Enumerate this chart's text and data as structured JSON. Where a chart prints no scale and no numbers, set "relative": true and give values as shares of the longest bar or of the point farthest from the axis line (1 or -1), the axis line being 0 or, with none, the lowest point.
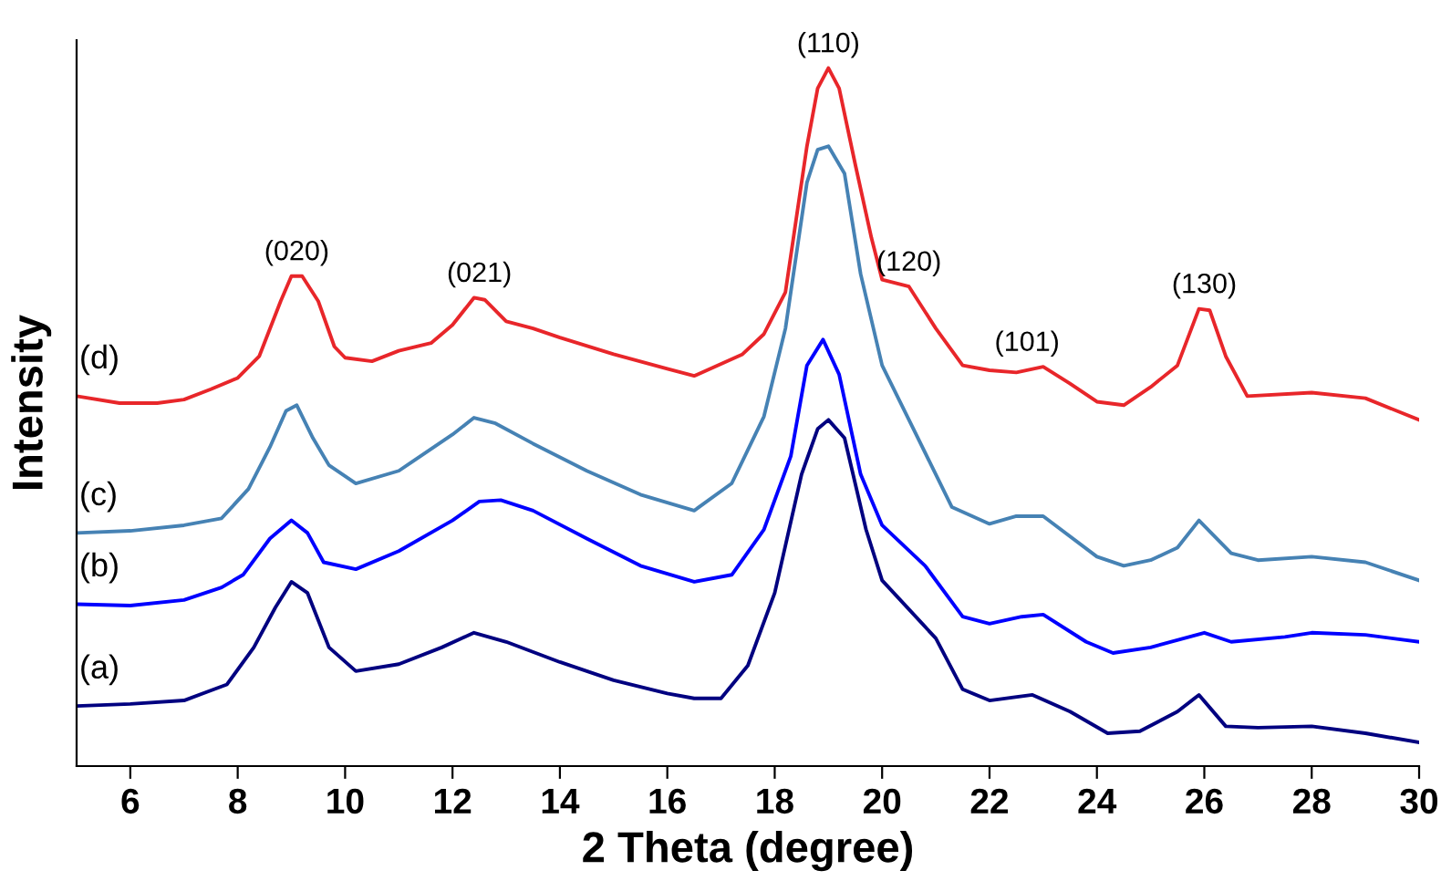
{
  "chart_data": {
    "type": "line",
    "relative": true,
    "xlabel": "2 Theta (degree)",
    "ylabel": "Intensity",
    "xlim": [
      5,
      30
    ],
    "xticks": [
      6,
      8,
      10,
      12,
      14,
      16,
      18,
      20,
      22,
      24,
      26,
      28,
      30
    ],
    "tick_labels": "x",
    "grid": false,
    "legend": false,
    "marker": "none",
    "line_style": "solid",
    "series": [
      {
        "name": "(a)",
        "color": "#000080",
        "x": [
          5,
          6,
          7,
          7.8,
          8.3,
          8.7,
          9.0,
          9.3,
          9.7,
          10.2,
          11,
          11.8,
          12.4,
          13,
          14,
          15,
          16,
          16.5,
          17.0,
          17.5,
          18.0,
          18.5,
          18.8,
          19.0,
          19.3,
          19.7,
          20,
          21,
          21.5,
          22,
          22.8,
          23.5,
          24.2,
          24.8,
          25.5,
          25.9,
          26.4,
          27,
          28,
          29,
          30
        ],
        "values": [
          0.086,
          0.089,
          0.094,
          0.117,
          0.17,
          0.227,
          0.264,
          0.248,
          0.17,
          0.136,
          0.146,
          0.17,
          0.191,
          0.178,
          0.149,
          0.123,
          0.104,
          0.097,
          0.097,
          0.144,
          0.248,
          0.418,
          0.483,
          0.496,
          0.47,
          0.339,
          0.266,
          0.183,
          0.11,
          0.094,
          0.102,
          0.078,
          0.047,
          0.05,
          0.078,
          0.102,
          0.057,
          0.055,
          0.057,
          0.047,
          0.034
        ]
      },
      {
        "name": "(b)",
        "color": "#0000ff",
        "x": [
          5,
          6,
          7,
          7.7,
          8.1,
          8.6,
          9.0,
          9.3,
          9.6,
          10.2,
          11,
          12,
          12.5,
          12.9,
          13.5,
          14.5,
          15.5,
          16.5,
          17.2,
          17.8,
          18.3,
          18.6,
          18.9,
          19.2,
          19.6,
          20.0,
          20.8,
          21.5,
          22,
          22.6,
          23,
          23.8,
          24.3,
          25,
          26,
          26.5,
          27.5,
          28,
          29,
          30
        ],
        "values": [
          0.232,
          0.23,
          0.238,
          0.256,
          0.274,
          0.326,
          0.352,
          0.334,
          0.292,
          0.282,
          0.308,
          0.352,
          0.379,
          0.381,
          0.366,
          0.326,
          0.287,
          0.264,
          0.274,
          0.339,
          0.444,
          0.574,
          0.611,
          0.561,
          0.418,
          0.345,
          0.287,
          0.214,
          0.204,
          0.214,
          0.217,
          0.178,
          0.162,
          0.17,
          0.191,
          0.178,
          0.185,
          0.191,
          0.188,
          0.178
        ]
      },
      {
        "name": "(c)",
        "color": "#4682b4",
        "x": [
          5,
          6,
          7,
          7.7,
          8.2,
          8.6,
          8.9,
          9.1,
          9.4,
          9.7,
          10.2,
          11,
          12,
          12.4,
          12.8,
          13.5,
          14.5,
          15.5,
          16.5,
          17.2,
          17.8,
          18.2,
          18.6,
          18.8,
          19.0,
          19.3,
          19.6,
          20.0,
          20.5,
          21.3,
          22,
          22.5,
          23,
          24,
          24.5,
          25,
          25.5,
          25.9,
          26.5,
          27,
          28,
          29,
          30
        ],
        "values": [
          0.334,
          0.337,
          0.345,
          0.355,
          0.397,
          0.457,
          0.509,
          0.517,
          0.47,
          0.431,
          0.405,
          0.423,
          0.475,
          0.499,
          0.491,
          0.462,
          0.423,
          0.389,
          0.366,
          0.405,
          0.501,
          0.627,
          0.836,
          0.883,
          0.888,
          0.849,
          0.705,
          0.574,
          0.496,
          0.371,
          0.347,
          0.358,
          0.358,
          0.3,
          0.287,
          0.295,
          0.313,
          0.352,
          0.305,
          0.295,
          0.3,
          0.292,
          0.266
        ]
      },
      {
        "name": "(d)",
        "color": "#e8262a",
        "x": [
          5,
          5.8,
          6.5,
          7,
          7.5,
          8,
          8.4,
          8.8,
          9.0,
          9.2,
          9.5,
          9.8,
          10,
          10.5,
          11,
          11.6,
          12,
          12.4,
          12.6,
          13,
          13.5,
          14,
          15,
          16,
          16.5,
          17.4,
          17.8,
          18.2,
          18.6,
          18.8,
          19.0,
          19.2,
          19.5,
          19.8,
          20.0,
          20.5,
          21,
          21.5,
          22,
          22.5,
          23,
          23.5,
          24,
          24.5,
          25,
          25.5,
          25.9,
          26.1,
          26.4,
          26.8,
          28,
          29,
          30
        ],
        "values": [
          0.53,
          0.52,
          0.52,
          0.525,
          0.54,
          0.556,
          0.587,
          0.666,
          0.702,
          0.702,
          0.666,
          0.601,
          0.585,
          0.58,
          0.595,
          0.606,
          0.632,
          0.671,
          0.668,
          0.637,
          0.627,
          0.614,
          0.59,
          0.569,
          0.559,
          0.59,
          0.619,
          0.679,
          0.888,
          0.971,
          1.0,
          0.971,
          0.862,
          0.757,
          0.697,
          0.687,
          0.627,
          0.574,
          0.567,
          0.564,
          0.572,
          0.548,
          0.522,
          0.517,
          0.543,
          0.574,
          0.655,
          0.653,
          0.587,
          0.53,
          0.535,
          0.527,
          0.496
        ]
      }
    ],
    "annotations": [
      {
        "text": "(020)",
        "x": 9.1,
        "y": 0.702
      },
      {
        "text": "(021)",
        "x": 12.5,
        "y": 0.671
      },
      {
        "text": "(110)",
        "x": 19.0,
        "y": 1.0
      },
      {
        "text": "(120)",
        "x": 20.5,
        "y": 0.687
      },
      {
        "text": "(101)",
        "x": 22.7,
        "y": 0.572
      },
      {
        "text": "(130)",
        "x": 26.0,
        "y": 0.655
      }
    ]
  }
}
